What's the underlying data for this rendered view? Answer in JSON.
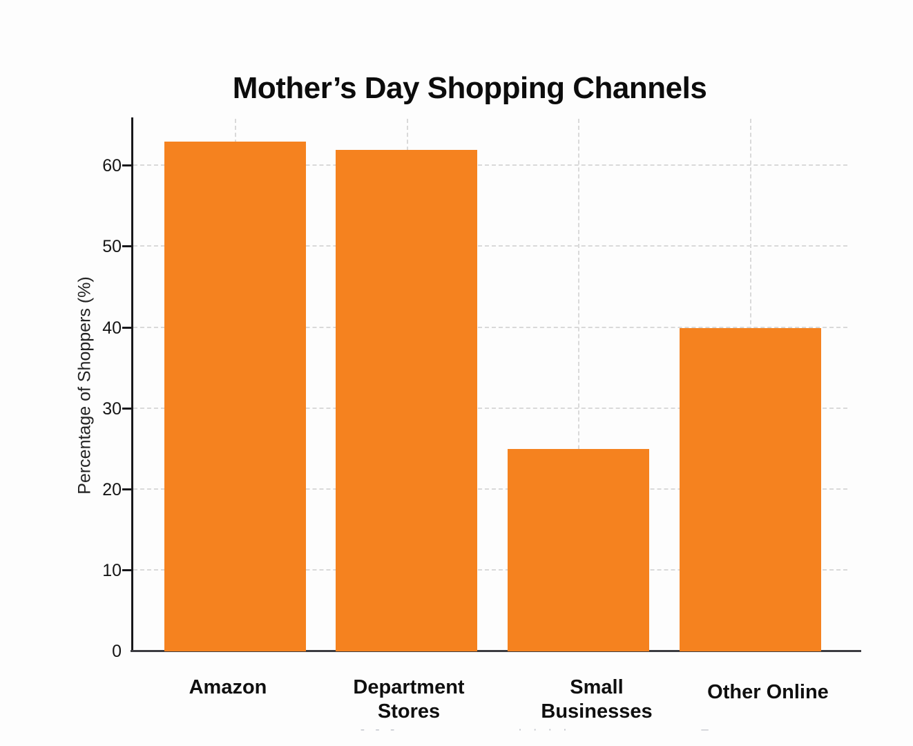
{
  "chart_data": {
    "type": "bar",
    "title": "Mother’s Day Shopping Channels",
    "xlabel": "",
    "ylabel": "Percentage of Shoppers (%)",
    "categories": [
      "Amazon",
      "Department Stores",
      "Small Businesses",
      "Other Online"
    ],
    "category_label_lines": [
      [
        "Amazon"
      ],
      [
        "Department",
        "Stores"
      ],
      [
        "Small",
        "Businesses"
      ],
      [
        "Other Online"
      ]
    ],
    "values": [
      63,
      62,
      25,
      40
    ],
    "unit": "%",
    "ylim": [
      0,
      66
    ],
    "yticks": [
      0,
      10,
      20,
      30,
      40,
      50,
      60
    ],
    "bar_color": "#F5821F",
    "grid": {
      "horizontal": true,
      "vertical": true,
      "style": "dashed",
      "color": "#d9d9d9"
    },
    "legend_position": "none"
  },
  "bottom_artifacts": [
    "- - -",
    "· · · ·",
    "–"
  ]
}
